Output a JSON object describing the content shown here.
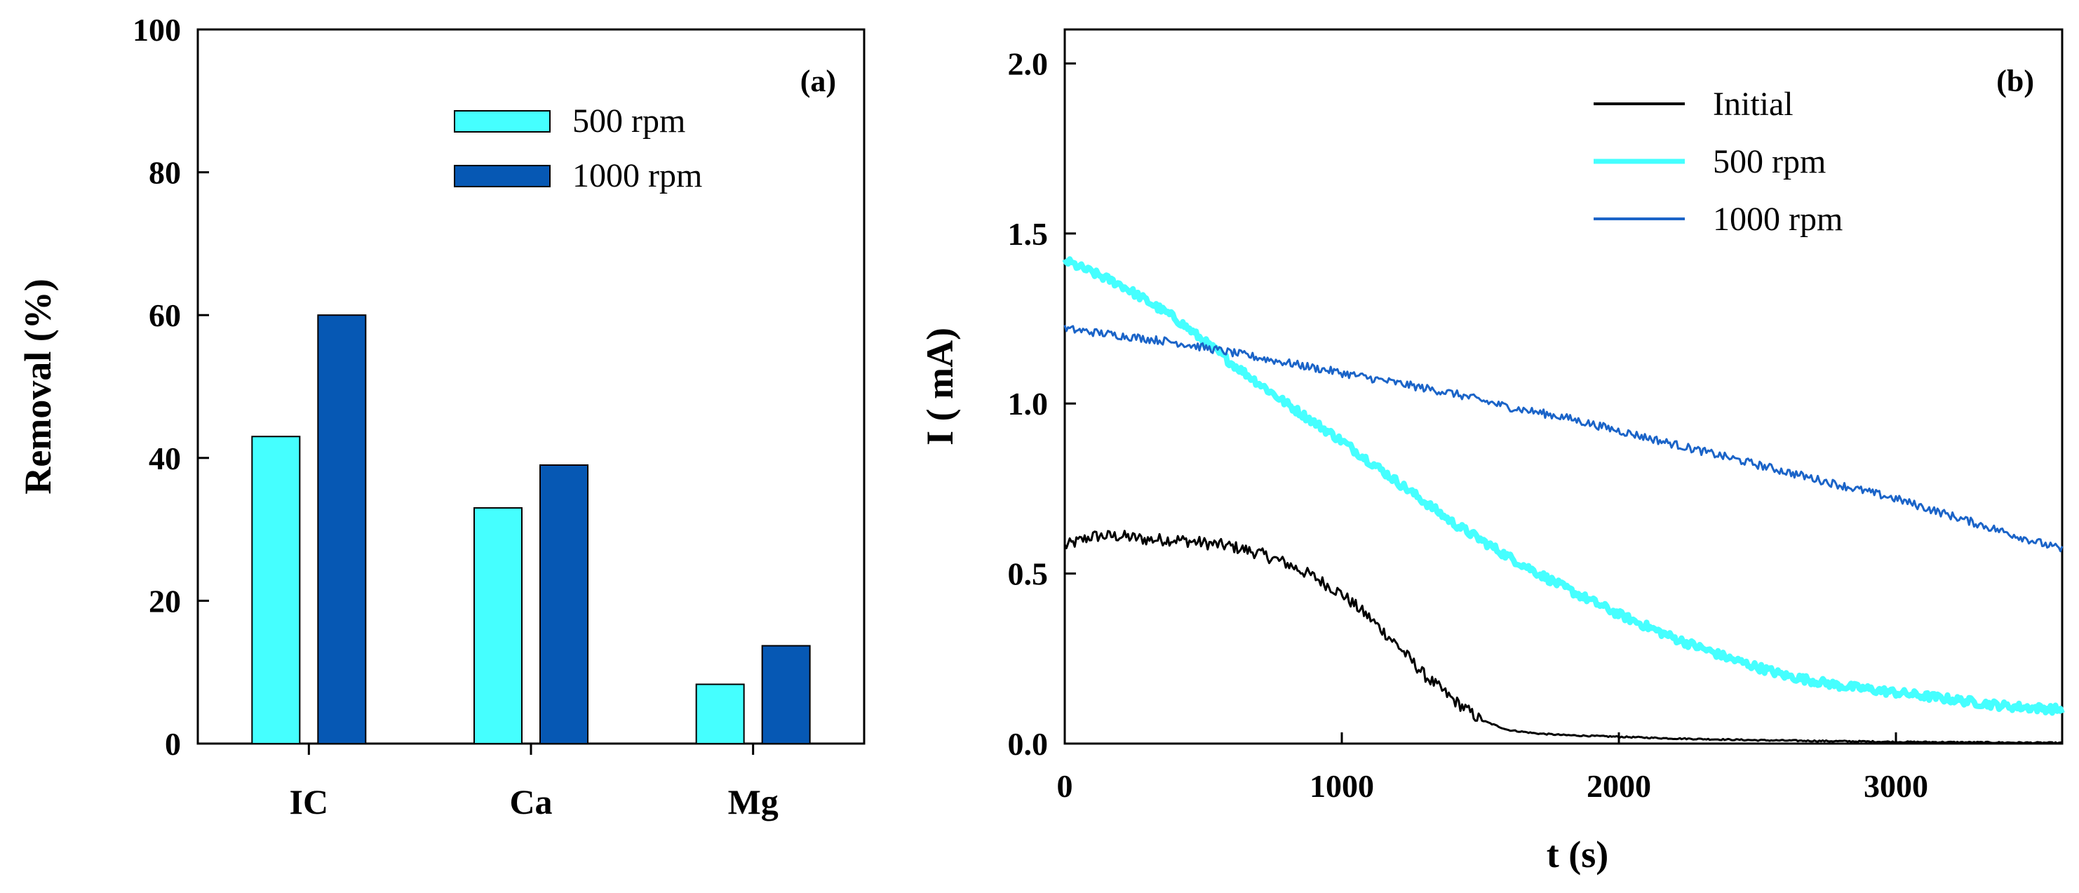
{
  "chart_data": [
    {
      "type": "bar",
      "panel_label": "(a)",
      "ylabel": "Removal (%)",
      "xlabel": "",
      "ylim": [
        0,
        100
      ],
      "yticks": [
        0,
        20,
        40,
        60,
        80,
        100
      ],
      "categories": [
        "IC",
        "Ca",
        "Mg"
      ],
      "legend_position": "top-right",
      "series": [
        {
          "name": "500 rpm",
          "color": "#45ffff",
          "values": [
            43,
            33,
            8.3
          ]
        },
        {
          "name": "1000 rpm",
          "color": "#0658b4",
          "values": [
            60,
            39,
            13.7
          ]
        }
      ]
    },
    {
      "type": "line",
      "panel_label": "(b)",
      "ylabel": "I ( mA)",
      "xlabel": "t  (s)",
      "xlim": [
        0,
        3600
      ],
      "ylim": [
        0,
        2.1
      ],
      "xticks": [
        0,
        1000,
        2000,
        3000
      ],
      "yticks": [
        0.0,
        0.5,
        1.0,
        1.5,
        2.0
      ],
      "ytick_labels": [
        "0.0",
        "0.5",
        "1.0",
        "1.5",
        "2.0"
      ],
      "legend_position": "top-right",
      "series": [
        {
          "name": "Initial",
          "color": "#000000",
          "x": [
            0,
            100,
            200,
            300,
            400,
            500,
            600,
            700,
            800,
            900,
            1000,
            1100,
            1200,
            1300,
            1400,
            1500,
            1600,
            1700,
            1800,
            2000,
            2200,
            2500,
            3000,
            3600
          ],
          "y": [
            0.58,
            0.61,
            0.61,
            0.6,
            0.6,
            0.59,
            0.58,
            0.56,
            0.53,
            0.49,
            0.44,
            0.37,
            0.29,
            0.2,
            0.13,
            0.07,
            0.04,
            0.03,
            0.025,
            0.02,
            0.015,
            0.01,
            0.005,
            0.002
          ]
        },
        {
          "name": "500 rpm",
          "color": "#45ffff",
          "x": [
            0,
            200,
            400,
            600,
            800,
            1000,
            1200,
            1400,
            1600,
            1800,
            2000,
            2200,
            2400,
            2600,
            2800,
            3000,
            3200,
            3400,
            3600
          ],
          "y": [
            1.42,
            1.35,
            1.25,
            1.12,
            1.0,
            0.89,
            0.77,
            0.65,
            0.55,
            0.46,
            0.38,
            0.31,
            0.25,
            0.2,
            0.17,
            0.15,
            0.13,
            0.11,
            0.1
          ]
        },
        {
          "name": "1000 rpm",
          "color": "#1b64c8",
          "x": [
            0,
            200,
            400,
            600,
            800,
            1000,
            1200,
            1400,
            1600,
            1800,
            2000,
            2200,
            2400,
            2600,
            2800,
            3000,
            3200,
            3400,
            3600
          ],
          "y": [
            1.22,
            1.2,
            1.18,
            1.15,
            1.12,
            1.09,
            1.06,
            1.03,
            0.99,
            0.96,
            0.92,
            0.88,
            0.84,
            0.8,
            0.76,
            0.72,
            0.67,
            0.62,
            0.57
          ]
        }
      ]
    }
  ]
}
